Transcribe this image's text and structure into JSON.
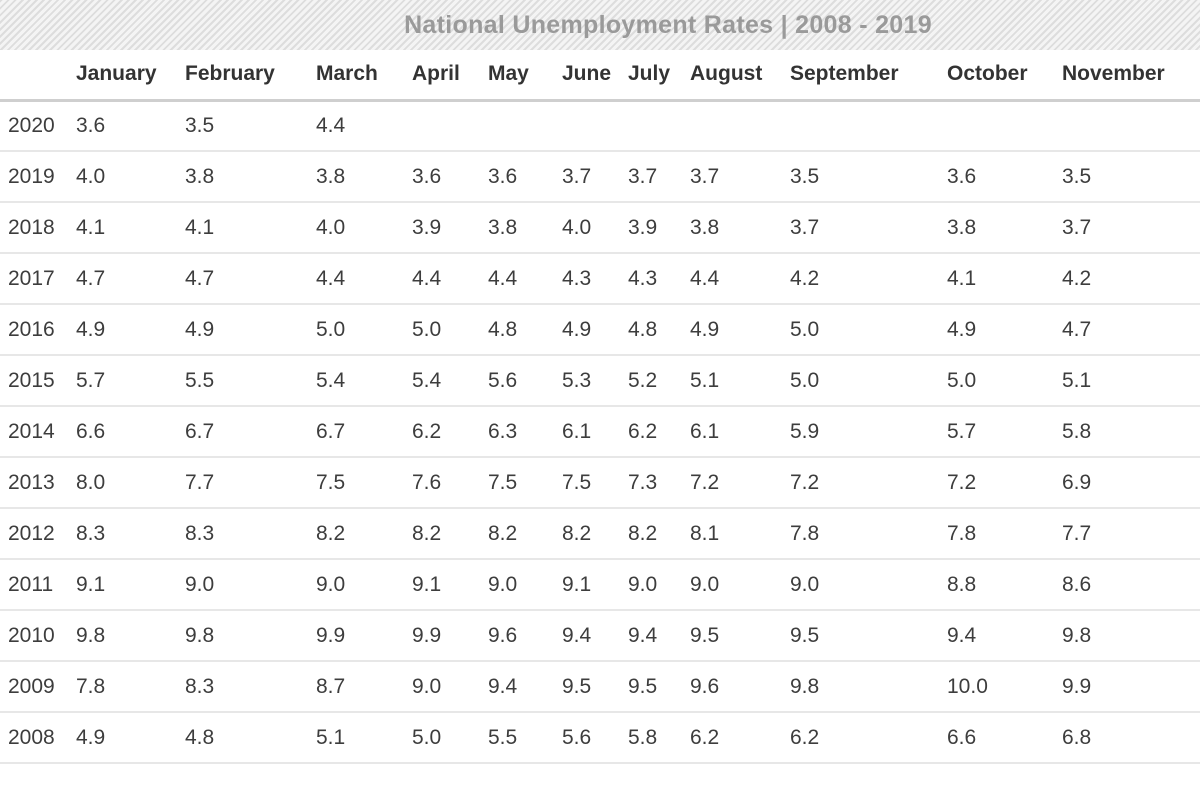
{
  "title": "National Unemployment Rates | 2008 - 2019",
  "colors": {
    "title_text": "#9a9a9a",
    "band_stripe_dark": "#dddddd",
    "band_stripe_light": "#f4f4f4",
    "header_text": "#333333",
    "cell_text": "#3d3d3d",
    "header_rule": "#cfcfcf",
    "row_separator": "#e7e7e7",
    "background": "#ffffff"
  },
  "chart_data": {
    "type": "table",
    "title": "National Unemployment Rates | 2008 - 2019",
    "columns": [
      "January",
      "February",
      "March",
      "April",
      "May",
      "June",
      "July",
      "August",
      "September",
      "October",
      "November"
    ],
    "rows": [
      {
        "year": "2020",
        "values": [
          "3.6",
          "3.5",
          "4.4",
          "",
          "",
          "",
          "",
          "",
          "",
          "",
          ""
        ]
      },
      {
        "year": "2019",
        "values": [
          "4.0",
          "3.8",
          "3.8",
          "3.6",
          "3.6",
          "3.7",
          "3.7",
          "3.7",
          "3.5",
          "3.6",
          "3.5"
        ]
      },
      {
        "year": "2018",
        "values": [
          "4.1",
          "4.1",
          "4.0",
          "3.9",
          "3.8",
          "4.0",
          "3.9",
          "3.8",
          "3.7",
          "3.8",
          "3.7"
        ]
      },
      {
        "year": "2017",
        "values": [
          "4.7",
          "4.7",
          "4.4",
          "4.4",
          "4.4",
          "4.3",
          "4.3",
          "4.4",
          "4.2",
          "4.1",
          "4.2"
        ]
      },
      {
        "year": "2016",
        "values": [
          "4.9",
          "4.9",
          "5.0",
          "5.0",
          "4.8",
          "4.9",
          "4.8",
          "4.9",
          "5.0",
          "4.9",
          "4.7"
        ]
      },
      {
        "year": "2015",
        "values": [
          "5.7",
          "5.5",
          "5.4",
          "5.4",
          "5.6",
          "5.3",
          "5.2",
          "5.1",
          "5.0",
          "5.0",
          "5.1"
        ]
      },
      {
        "year": "2014",
        "values": [
          "6.6",
          "6.7",
          "6.7",
          "6.2",
          "6.3",
          "6.1",
          "6.2",
          "6.1",
          "5.9",
          "5.7",
          "5.8"
        ]
      },
      {
        "year": "2013",
        "values": [
          "8.0",
          "7.7",
          "7.5",
          "7.6",
          "7.5",
          "7.5",
          "7.3",
          "7.2",
          "7.2",
          "7.2",
          "6.9"
        ]
      },
      {
        "year": "2012",
        "values": [
          "8.3",
          "8.3",
          "8.2",
          "8.2",
          "8.2",
          "8.2",
          "8.2",
          "8.1",
          "7.8",
          "7.8",
          "7.7"
        ]
      },
      {
        "year": "2011",
        "values": [
          "9.1",
          "9.0",
          "9.0",
          "9.1",
          "9.0",
          "9.1",
          "9.0",
          "9.0",
          "9.0",
          "8.8",
          "8.6"
        ]
      },
      {
        "year": "2010",
        "values": [
          "9.8",
          "9.8",
          "9.9",
          "9.9",
          "9.6",
          "9.4",
          "9.4",
          "9.5",
          "9.5",
          "9.4",
          "9.8"
        ]
      },
      {
        "year": "2009",
        "values": [
          "7.8",
          "8.3",
          "8.7",
          "9.0",
          "9.4",
          "9.5",
          "9.5",
          "9.6",
          "9.8",
          "10.0",
          "9.9"
        ]
      },
      {
        "year": "2008",
        "values": [
          "4.9",
          "4.8",
          "5.1",
          "5.0",
          "5.5",
          "5.6",
          "5.8",
          "6.2",
          "6.2",
          "6.6",
          "6.8"
        ]
      }
    ]
  }
}
